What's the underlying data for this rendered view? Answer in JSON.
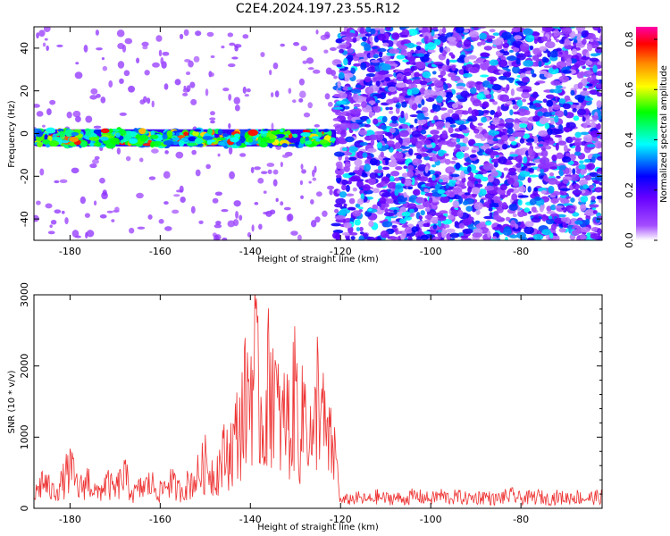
{
  "title": "C2E4.2024.197.23.55.R12",
  "chart_data": [
    {
      "type": "heatmap",
      "xlabel": "Height of straight line (km)",
      "ylabel": "Frequency (Hz)",
      "xlim": [
        -188,
        -62
      ],
      "ylim": [
        -50,
        50
      ],
      "x_ticks": [
        -180,
        -160,
        -140,
        -120,
        -100,
        -80
      ],
      "y_ticks": [
        -40,
        -20,
        0,
        20,
        40
      ],
      "colorbar": {
        "label": "Normalized spectral amplitude",
        "range": [
          0,
          0.85
        ],
        "ticks": [
          0.0,
          0.2,
          0.4,
          0.6,
          0.8
        ],
        "colors": [
          "#ffffff",
          "#8a00ff",
          "#0000ff",
          "#00ffff",
          "#00ff00",
          "#ffff00",
          "#ff8800",
          "#ff0000",
          "#ff00aa"
        ]
      },
      "signal_band": {
        "x_range": [
          -188,
          -121
        ],
        "frequency_center": -2,
        "frequency_halfwidth": 4,
        "peak_amplitude": 0.8
      },
      "noise_region": {
        "x_range": [
          -121,
          -62
        ],
        "frequency_range": [
          -50,
          50
        ],
        "typical_amplitude": 0.15
      }
    },
    {
      "type": "line",
      "xlabel": "Height of straight line (km)",
      "ylabel": "SNR (10 * v/v)",
      "xlim": [
        -188,
        -62
      ],
      "ylim": [
        0,
        3000
      ],
      "x_ticks": [
        -180,
        -160,
        -140,
        -120,
        -100,
        -80
      ],
      "y_ticks": [
        0,
        1000,
        2000,
        3000
      ],
      "color": "#ee3333",
      "series": [
        {
          "x": [
            -188,
            -186,
            -184,
            -182,
            -180,
            -178,
            -176,
            -174,
            -172,
            -170,
            -168,
            -166,
            -164,
            -162,
            -160,
            -158,
            -156,
            -154,
            -152,
            -150,
            -148,
            -146,
            -144,
            -142,
            -141,
            -140,
            -139,
            -138,
            -137,
            -136,
            -135,
            -134,
            -133,
            -132,
            -131,
            -130,
            -129,
            -128,
            -127,
            -126,
            -125,
            -124,
            -123,
            -122,
            -121,
            -120,
            -118,
            -116,
            -114,
            -112,
            -110,
            -108,
            -106,
            -104,
            -102,
            -100,
            -98,
            -96,
            -94,
            -92,
            -90,
            -88,
            -86,
            -84,
            -82,
            -80,
            -78,
            -76,
            -74,
            -72,
            -70,
            -68,
            -66,
            -64,
            -62
          ],
          "values": [
            250,
            600,
            350,
            500,
            850,
            400,
            620,
            300,
            550,
            380,
            700,
            300,
            450,
            520,
            350,
            600,
            380,
            500,
            650,
            950,
            700,
            1100,
            1300,
            1900,
            2300,
            2700,
            3000,
            2200,
            1800,
            2600,
            2900,
            2000,
            1700,
            2100,
            1500,
            2750,
            1400,
            2300,
            1800,
            1200,
            2800,
            1900,
            1400,
            1300,
            1100,
            150,
            200,
            220,
            180,
            250,
            210,
            230,
            190,
            260,
            240,
            200,
            280,
            220,
            250,
            210,
            230,
            260,
            190,
            240,
            270,
            210,
            230,
            250,
            200,
            240,
            220,
            260,
            210,
            230,
            250
          ]
        }
      ]
    }
  ]
}
